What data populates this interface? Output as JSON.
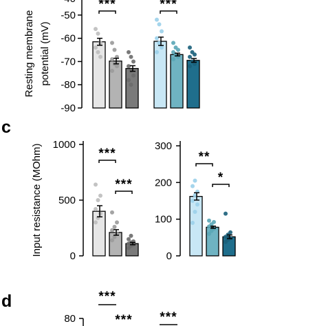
{
  "chart_data": [
    {
      "panel": "",
      "type": "bar",
      "ylabel_lines": [
        "Resting membrane",
        "potential (mV)"
      ],
      "ylim": [
        -90,
        -45
      ],
      "yticks": [
        -90,
        -80,
        -70,
        -60,
        -50
      ],
      "groups": [
        {
          "bar_colors": [
            "#e6e6e6",
            "#b3b3b3",
            "#7a7a7a"
          ],
          "point_colors": [
            "#bdbdbd",
            "#9a9a9a",
            "#6a6a6a"
          ],
          "values": [
            -61.5,
            -69.8,
            -73
          ],
          "errors": [
            1.5,
            1.2,
            1.2
          ],
          "points": [
            [
              -56,
              -58,
              -62,
              -64,
              -66,
              -68
            ],
            [
              -62,
              -65,
              -68,
              -69,
              -71,
              -72,
              -74
            ],
            [
              -66,
              -68,
              -70,
              -72,
              -74,
              -76,
              -78,
              -80
            ]
          ],
          "sig": [
            {
              "from": 0,
              "to": 1,
              "label": "***"
            }
          ]
        },
        {
          "bar_colors": [
            "#c8e7f5",
            "#6fb3c2",
            "#1f6e8c"
          ],
          "point_colors": [
            "#9bd0ea",
            "#5aa6b6",
            "#1a5f7a"
          ],
          "values": [
            -61.3,
            -67,
            -69.5
          ],
          "errors": [
            1.8,
            0.6,
            0.8
          ],
          "points": [
            [
              -52,
              -54,
              -57,
              -60,
              -62,
              -64,
              -66
            ],
            [
              -62,
              -64,
              -65,
              -66,
              -67,
              -68,
              -69
            ],
            [
              -64,
              -66,
              -67,
              -68,
              -70,
              -71,
              -72
            ]
          ],
          "sig": [
            {
              "from": 0,
              "to": 1,
              "label": "***"
            }
          ]
        }
      ]
    },
    {
      "panel": "c",
      "type": "bar",
      "ylabel": "Input resistance (MOhm)",
      "sub": [
        {
          "ylim": [
            0,
            1000
          ],
          "yticks": [
            0,
            500,
            1000
          ],
          "bar_colors": [
            "#e6e6e6",
            "#b3b3b3",
            "#7a7a7a"
          ],
          "point_colors": [
            "#bdbdbd",
            "#9a9a9a",
            "#6a6a6a"
          ],
          "values": [
            400,
            210,
            110
          ],
          "errors": [
            50,
            25,
            10
          ],
          "points": [
            [
              300,
              340,
              380,
              420,
              500,
              540,
              640
            ],
            [
              140,
              170,
              200,
              230,
              260,
              300,
              390
            ],
            [
              70,
              90,
              100,
              110,
              120,
              130,
              150,
              180
            ]
          ],
          "sig": [
            {
              "from": 0,
              "to": 1,
              "label": "***"
            },
            {
              "from": 1,
              "to": 2,
              "label": "***"
            }
          ]
        },
        {
          "ylim": [
            0,
            300
          ],
          "yticks": [
            0,
            100,
            200,
            300
          ],
          "bar_colors": [
            "#c8e7f5",
            "#6fb3c2",
            "#1f6e8c"
          ],
          "point_colors": [
            "#9bd0ea",
            "#5aa6b6",
            "#1a5f7a"
          ],
          "values": [
            162,
            78,
            52
          ],
          "errors": [
            10,
            3,
            5
          ],
          "points": [
            [
              90,
              120,
              140,
              150,
              165,
              175,
              190,
              205
            ],
            [
              60,
              68,
              74,
              80,
              86,
              92,
              96
            ],
            [
              38,
              44,
              48,
              52,
              58,
              64,
              115
            ]
          ],
          "sig": [
            {
              "from": 0,
              "to": 1,
              "label": "**"
            },
            {
              "from": 1,
              "to": 2,
              "label": "*"
            }
          ]
        }
      ]
    },
    {
      "panel": "d",
      "type": "bar",
      "visible_ytick": "80",
      "sig_labels": [
        "***",
        "***",
        "***"
      ]
    }
  ]
}
